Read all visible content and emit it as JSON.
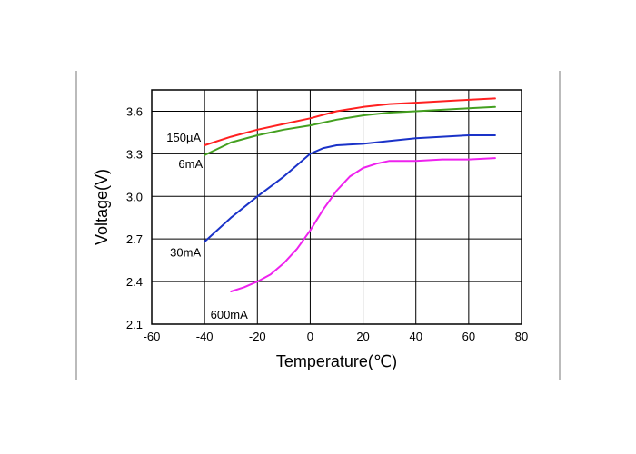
{
  "chart_data": {
    "type": "line",
    "title": "",
    "xlabel": "Temperature(℃)",
    "ylabel": "Voltage(V)",
    "xlim": [
      -60,
      80
    ],
    "ylim": [
      2.1,
      3.75
    ],
    "x_ticks": [
      -60,
      -40,
      -20,
      0,
      20,
      40,
      60,
      80
    ],
    "y_ticks": [
      2.1,
      2.4,
      2.7,
      3.0,
      3.3,
      3.6
    ],
    "x_tick_labels": [
      "-60",
      "-40",
      "-20",
      "0",
      "20",
      "40",
      "60",
      "80"
    ],
    "y_tick_labels": [
      "2.1",
      "2.4",
      "2.7",
      "3.0",
      "3.3",
      "3.6"
    ],
    "grid": true,
    "legend": "none",
    "series": [
      {
        "name": "150µA",
        "color": "#ff2020",
        "x": [
          -40,
          -30,
          -20,
          -10,
          0,
          10,
          20,
          30,
          40,
          50,
          60,
          70
        ],
        "y": [
          3.36,
          3.42,
          3.47,
          3.51,
          3.55,
          3.6,
          3.63,
          3.65,
          3.66,
          3.67,
          3.68,
          3.69
        ]
      },
      {
        "name": "6mA",
        "color": "#44a020",
        "x": [
          -40,
          -30,
          -20,
          -10,
          0,
          10,
          20,
          30,
          40,
          50,
          60,
          70
        ],
        "y": [
          3.29,
          3.38,
          3.43,
          3.47,
          3.5,
          3.54,
          3.57,
          3.59,
          3.6,
          3.61,
          3.62,
          3.63
        ]
      },
      {
        "name": "30mA",
        "color": "#1a32c8",
        "x": [
          -40,
          -30,
          -20,
          -10,
          -5,
          0,
          5,
          10,
          20,
          30,
          40,
          50,
          60,
          70
        ],
        "y": [
          2.68,
          2.85,
          3.0,
          3.14,
          3.22,
          3.3,
          3.34,
          3.36,
          3.37,
          3.39,
          3.41,
          3.42,
          3.43,
          3.43
        ]
      },
      {
        "name": "600mA",
        "color": "#ee22ee",
        "x": [
          -30,
          -25,
          -20,
          -15,
          -10,
          -5,
          0,
          5,
          10,
          15,
          20,
          25,
          30,
          40,
          50,
          60,
          70
        ],
        "y": [
          2.33,
          2.36,
          2.4,
          2.45,
          2.53,
          2.63,
          2.76,
          2.91,
          3.04,
          3.14,
          3.2,
          3.23,
          3.25,
          3.25,
          3.26,
          3.26,
          3.27
        ]
      }
    ]
  }
}
